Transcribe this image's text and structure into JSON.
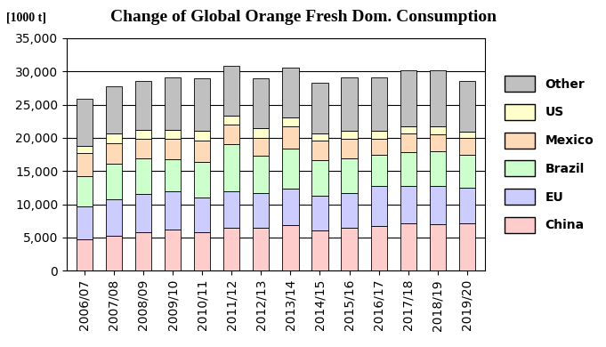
{
  "chart_data": {
    "type": "bar",
    "title": "Change of Global Orange Fresh Dom. Consumption",
    "y_label": "[1000 t]",
    "categories": [
      "2006/07",
      "2007/08",
      "2008/09",
      "2009/10",
      "2010/11",
      "2011/12",
      "2012/13",
      "2013/14",
      "2014/15",
      "2015/16",
      "2016/17",
      "2017/18",
      "2018/19",
      "2019/20"
    ],
    "series": [
      {
        "name": "China",
        "color": "#ffcccc",
        "values": [
          4700,
          5200,
          5800,
          6200,
          5800,
          6400,
          6400,
          6800,
          6100,
          6500,
          6700,
          7100,
          7000,
          7100
        ]
      },
      {
        "name": "EU",
        "color": "#ccccff",
        "values": [
          5000,
          5600,
          5800,
          5700,
          5200,
          5500,
          5300,
          5500,
          5200,
          5200,
          6000,
          5700,
          5800,
          5400
        ]
      },
      {
        "name": "Brazil",
        "color": "#ccffcc",
        "values": [
          4500,
          5300,
          5300,
          4900,
          5400,
          7200,
          5600,
          6100,
          5300,
          5200,
          4700,
          5000,
          5200,
          4900
        ]
      },
      {
        "name": "Mexico",
        "color": "#ffdab9",
        "values": [
          3500,
          3100,
          3000,
          3000,
          3200,
          2900,
          2700,
          3300,
          3000,
          2900,
          2500,
          2800,
          2500,
          2600
        ]
      },
      {
        "name": "US",
        "color": "#ffffcc",
        "values": [
          1100,
          1400,
          1300,
          1400,
          1400,
          1400,
          1500,
          1400,
          1100,
          1200,
          1100,
          1100,
          1200,
          900
        ]
      },
      {
        "name": "Other",
        "color": "#c0c0c0",
        "values": [
          7100,
          7100,
          7300,
          7900,
          8000,
          7500,
          7500,
          7500,
          7600,
          8100,
          8100,
          8400,
          8400,
          7700
        ]
      }
    ],
    "stacked": true,
    "ylim": [
      0,
      35000
    ],
    "yticks": [
      0,
      {
        "value": 5000,
        "label": "5,000"
      },
      {
        "value": 10000,
        "label": "10,000"
      },
      {
        "value": 15000,
        "label": "15,000"
      },
      {
        "value": 20000,
        "label": "20,000"
      },
      {
        "value": 25000,
        "label": "25,000"
      },
      {
        "value": 30000,
        "label": "30,000"
      },
      {
        "value": 35000,
        "label": "35,000"
      }
    ],
    "grid": true,
    "legend": "right"
  }
}
